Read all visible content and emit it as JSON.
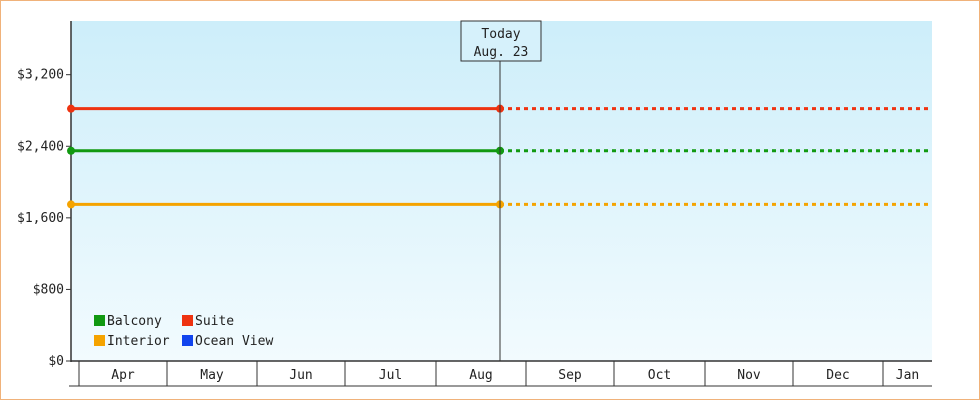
{
  "chart_data": {
    "type": "line",
    "title": "",
    "xlabel": "",
    "ylabel": "",
    "ylim": [
      0,
      3800
    ],
    "y_ticks": [
      {
        "value": 0,
        "label": "$0"
      },
      {
        "value": 800,
        "label": "$800"
      },
      {
        "value": 1600,
        "label": "$1,600"
      },
      {
        "value": 2400,
        "label": "$2,400"
      },
      {
        "value": 3200,
        "label": "$3,200"
      }
    ],
    "months": [
      "Apr",
      "May",
      "Jun",
      "Jul",
      "Aug",
      "Sep",
      "Oct",
      "Nov",
      "Dec",
      "Jan"
    ],
    "today": {
      "label": "Today",
      "date": "Aug. 23"
    },
    "series": [
      {
        "name": "Balcony",
        "color": "#119911",
        "value": 2350,
        "line_style": "solid until today, dotted after"
      },
      {
        "name": "Suite",
        "color": "#ee3311",
        "value": 2820,
        "line_style": "solid until today, dotted after"
      },
      {
        "name": "Interior",
        "color": "#f5a300",
        "value": 1750,
        "line_style": "solid until today, dotted after"
      },
      {
        "name": "Ocean View",
        "color": "#1144ee",
        "value": null,
        "line_style": "none"
      }
    ],
    "legend_position": "bottom-left",
    "grid": false,
    "background": "light blue gradient"
  }
}
